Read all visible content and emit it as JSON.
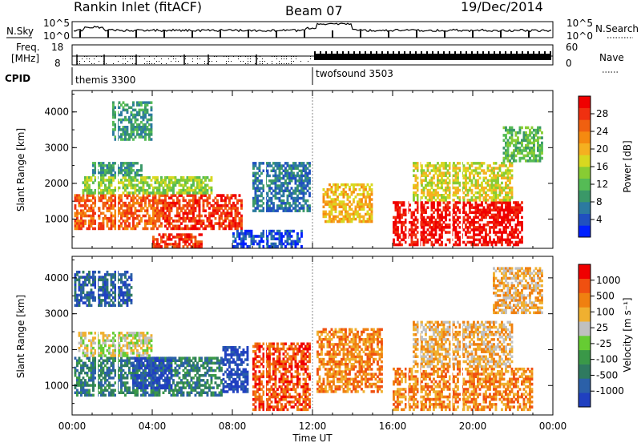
{
  "header": {
    "station": "Rankin Inlet (fitACF)",
    "beam": "Beam 07",
    "date": "19/Dec/2014"
  },
  "noise_panel": {
    "left_label": "N.Sky",
    "left_ticks": [
      "10^5",
      "10^0"
    ],
    "right_label": "N.Search",
    "right_ticks": [
      "10^5",
      "10^0"
    ]
  },
  "freq_panel": {
    "left_label_1": "Freq.",
    "left_label_2": "[MHz]",
    "left_ticks": [
      "18",
      "8"
    ],
    "right_label": "Nave",
    "right_ticks": [
      "60",
      "0"
    ]
  },
  "cpid": {
    "label": "CPID",
    "segments": [
      {
        "name": "themis 3300",
        "start_hour": 0
      },
      {
        "name": "twofsound 3503",
        "start_hour": 12
      }
    ]
  },
  "chart_data": [
    {
      "type": "heatmap",
      "panel": "power",
      "ylabel": "Slant Range [km]",
      "yticks": [
        "1000",
        "2000",
        "3000",
        "4000"
      ],
      "ylim": [
        180,
        4600
      ],
      "xlim": [
        0,
        24
      ],
      "colorbar": {
        "label": "Power [dB]",
        "ticks": [
          "4",
          "8",
          "12",
          "16",
          "20",
          "24",
          "28"
        ],
        "colors": [
          "#0020ff",
          "#2050c0",
          "#2c7aa0",
          "#3a9868",
          "#55bb55",
          "#88cc33",
          "#d8d820",
          "#f5b020",
          "#f58a10",
          "#f06010",
          "#f03010",
          "#f00000"
        ]
      },
      "regions": [
        {
          "t0": 0.1,
          "t1": 4.5,
          "r0": 700,
          "r1": 1700,
          "level": 9
        },
        {
          "t0": 4.5,
          "t1": 8.5,
          "r0": 700,
          "r1": 1700,
          "level": 10
        },
        {
          "t0": 0.5,
          "t1": 7.0,
          "r0": 1700,
          "r1": 2200,
          "level": 5
        },
        {
          "t0": 1.0,
          "t1": 3.5,
          "r0": 2200,
          "r1": 2600,
          "level": 3
        },
        {
          "t0": 2.0,
          "t1": 4.0,
          "r0": 3200,
          "r1": 4300,
          "level": 3
        },
        {
          "t0": 4.0,
          "t1": 6.5,
          "r0": 200,
          "r1": 600,
          "level": 10
        },
        {
          "t0": 8.0,
          "t1": 11.5,
          "r0": 200,
          "r1": 700,
          "level": 1
        },
        {
          "t0": 9.0,
          "t1": 11.9,
          "r0": 1200,
          "r1": 2600,
          "level": 2
        },
        {
          "t0": 12.5,
          "t1": 15.0,
          "r0": 900,
          "r1": 2000,
          "level": 7
        },
        {
          "t0": 16.0,
          "t1": 22.5,
          "r0": 250,
          "r1": 1500,
          "level": 11
        },
        {
          "t0": 17.0,
          "t1": 22.0,
          "r0": 1500,
          "r1": 2600,
          "level": 6
        },
        {
          "t0": 21.5,
          "t1": 23.5,
          "r0": 2600,
          "r1": 3600,
          "level": 4
        }
      ]
    },
    {
      "type": "heatmap",
      "panel": "velocity",
      "ylabel": "Slant Range [km]",
      "xlabel": "Time UT",
      "xticks": [
        "00:00",
        "04:00",
        "08:00",
        "12:00",
        "16:00",
        "20:00",
        "00:00"
      ],
      "yticks": [
        "1000",
        "2000",
        "3000",
        "4000"
      ],
      "ylim": [
        180,
        4600
      ],
      "xlim": [
        0,
        24
      ],
      "colorbar": {
        "label": "Velocity [m s⁻¹]",
        "ticks": [
          "1000",
          "500",
          "100",
          "25",
          "-25",
          "-100",
          "-500",
          "-1000"
        ],
        "colors": [
          "#2040c0",
          "#2b60a8",
          "#2f7a60",
          "#3a9848",
          "#66cc33",
          "#c0c0c0",
          "#f0b030",
          "#f08010",
          "#f05010",
          "#f00000"
        ]
      },
      "regions": [
        {
          "t0": 0.1,
          "t1": 7.5,
          "r0": 700,
          "r1": 1800,
          "level": 2
        },
        {
          "t0": 3.0,
          "t1": 5.0,
          "r0": 900,
          "r1": 1800,
          "level": 0
        },
        {
          "t0": 7.5,
          "t1": 8.8,
          "r0": 800,
          "r1": 2100,
          "level": 0
        },
        {
          "t0": 0.3,
          "t1": 4.0,
          "r0": 1800,
          "r1": 2500,
          "level": 5
        },
        {
          "t0": 9.0,
          "t1": 11.9,
          "r0": 300,
          "r1": 2200,
          "level": 8
        },
        {
          "t0": 12.2,
          "t1": 15.5,
          "r0": 800,
          "r1": 2600,
          "level": 7
        },
        {
          "t0": 16.0,
          "t1": 23.0,
          "r0": 300,
          "r1": 1500,
          "level": 7
        },
        {
          "t0": 17.0,
          "t1": 22.0,
          "r0": 1500,
          "r1": 2800,
          "level": 6
        },
        {
          "t0": 21.0,
          "t1": 23.5,
          "r0": 3000,
          "r1": 4300,
          "level": 6
        },
        {
          "t0": 0.1,
          "t1": 3.0,
          "r0": 3200,
          "r1": 4200,
          "level": 1
        }
      ]
    }
  ]
}
